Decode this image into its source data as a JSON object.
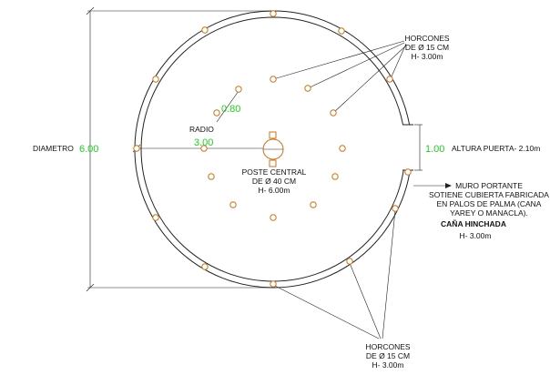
{
  "labels": {
    "horcones_top": [
      "HORCONES",
      "DE Ø 15 CM",
      "H- 3.00m"
    ],
    "horcones_bottom": [
      "HORCONES",
      "DE Ø 15 CM",
      "H- 3.00m"
    ],
    "diametro_label": "DIAMETRO",
    "diametro_value": "6.00",
    "radio_label": "RADIO",
    "radio_value": "3.00",
    "spacing_value": "0.80",
    "poste_central": [
      "POSTE CENTRAL",
      "DE Ø 40 CM",
      "H- 6.00m"
    ],
    "puerta_value": "1.00",
    "puerta_label": "ALTURA PUERTA- 2.10m",
    "muro": [
      "MURO PORTANTE",
      "SOTIENE CUBIERTA FABRICADA",
      "EN  PALOS DE PALMA (CANA",
      "YAREY O MANACLA)."
    ],
    "cana_title": "CAÑA HINCHADA",
    "cana_height": "H- 3.00m"
  },
  "colors": {
    "line": "#222222",
    "post": "#c8751a",
    "dimension": "#22cc22"
  }
}
